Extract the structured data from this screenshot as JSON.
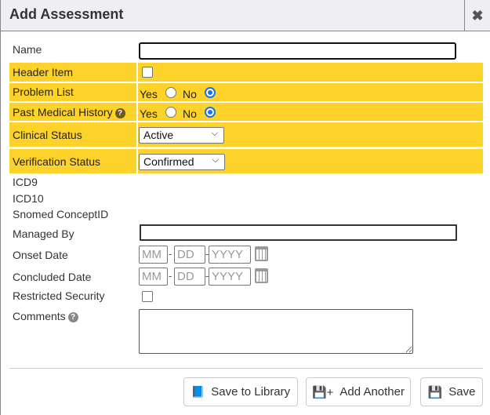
{
  "dialog": {
    "title": "Add Assessment",
    "close_icon": "close-icon"
  },
  "fields": {
    "name": {
      "label": "Name",
      "value": ""
    },
    "header_item": {
      "label": "Header Item",
      "checked": false
    },
    "problem_list": {
      "label": "Problem List",
      "yes": "Yes",
      "no": "No",
      "selected": "No"
    },
    "past_medical_history": {
      "label": "Past Medical History",
      "yes": "Yes",
      "no": "No",
      "selected": "No"
    },
    "clinical_status": {
      "label": "Clinical Status",
      "value": "Active"
    },
    "verification_status": {
      "label": "Verification Status",
      "value": "Confirmed"
    },
    "icd9": {
      "label": "ICD9"
    },
    "icd10": {
      "label": "ICD10"
    },
    "snomed": {
      "label": "Snomed ConceptID"
    },
    "managed_by": {
      "label": "Managed By",
      "value": ""
    },
    "onset_date": {
      "label": "Onset Date",
      "mm": "MM",
      "dd": "DD",
      "yyyy": "YYYY"
    },
    "concluded_date": {
      "label": "Concluded Date",
      "mm": "MM",
      "dd": "DD",
      "yyyy": "YYYY"
    },
    "restricted_security": {
      "label": "Restricted Security",
      "checked": false
    },
    "comments": {
      "label": "Comments",
      "value": ""
    }
  },
  "buttons": {
    "save_to_library": "Save to Library",
    "add_another": "Add Another",
    "save": "Save"
  },
  "colors": {
    "highlight": "#fdd22b",
    "radio_selected": "#1a73e8",
    "help_dark": "#6b5a1e",
    "help_gray": "#888888"
  }
}
